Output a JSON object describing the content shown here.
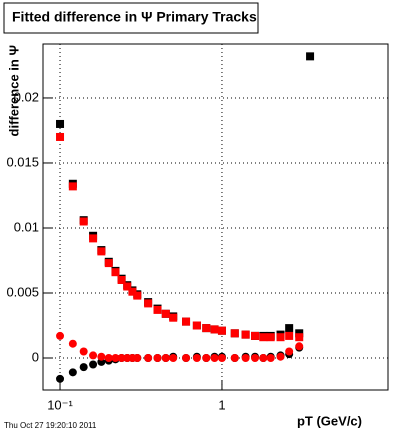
{
  "chart_data": {
    "type": "scatter",
    "title": "Fitted difference in Ψ   Primary Tracks",
    "y_label": "difference in Ψ",
    "x_label": "pT (GeV/c)",
    "footer": "Thu Oct 27 19:20:10 2011",
    "x_log": true,
    "grid": true,
    "xlim": [
      0.0785,
      10.6
    ],
    "ylim": [
      -0.00246,
      0.02415
    ],
    "xticks": [
      {
        "value": 0.1,
        "label": "10⁻¹"
      },
      1
    ],
    "yticks": [
      0,
      0.005,
      0.01,
      0.015,
      0.02
    ],
    "x": [
      0.1,
      0.12,
      0.14,
      0.16,
      0.18,
      0.2,
      0.22,
      0.24,
      0.26,
      0.28,
      0.3,
      0.35,
      0.4,
      0.45,
      0.5,
      0.6,
      0.7,
      0.8,
      0.9,
      1.0,
      1.2,
      1.4,
      1.6,
      1.8,
      2.0,
      2.3,
      2.6,
      3.0,
      3.5
    ],
    "series": [
      {
        "color": "#000000",
        "marker": "square",
        "values": [
          0.018,
          0.0134,
          0.0106,
          0.0094,
          0.0083,
          0.0074,
          0.0067,
          0.0061,
          0.0056,
          0.0052,
          0.0049,
          0.0043,
          0.0038,
          0.0034,
          0.0032,
          0.0028,
          0.0025,
          0.0023,
          0.0022,
          0.0021,
          0.0019,
          0.0018,
          0.0017,
          0.0017,
          0.0017,
          0.0018,
          0.0023,
          0.0019,
          0.0232
        ]
      },
      {
        "color": "#ff0000",
        "marker": "square",
        "values": [
          0.017,
          0.0132,
          0.0105,
          0.0092,
          0.0082,
          0.0073,
          0.0066,
          0.006,
          0.0055,
          0.0051,
          0.0048,
          0.0042,
          0.0037,
          0.0034,
          0.0031,
          0.0028,
          0.0025,
          0.0023,
          0.0022,
          0.0021,
          0.0019,
          0.0018,
          0.0017,
          0.0016,
          0.0016,
          0.0016,
          0.0017,
          0.0016,
          null
        ]
      },
      {
        "color": "#000000",
        "marker": "circle",
        "values": [
          -0.0016,
          -0.0011,
          -0.0007,
          -0.0005,
          -0.0003,
          -0.0002,
          -0.0001,
          0,
          0,
          0,
          0,
          0,
          0,
          0,
          0.0001,
          0,
          0.0001,
          0,
          0.0001,
          0.0001,
          0,
          0.0001,
          0.0001,
          0,
          0.0001,
          0.0002,
          0.0003,
          0.0008,
          null
        ]
      },
      {
        "color": "#ff0000",
        "marker": "circle",
        "values": [
          0.0017,
          0.0011,
          0.0005,
          0.0002,
          0.0001,
          0,
          0,
          0,
          0,
          0,
          0,
          0,
          0,
          0,
          0,
          0,
          0,
          0,
          0,
          0,
          0,
          0,
          0,
          0,
          0,
          0.0001,
          0.0005,
          0.0009,
          null
        ]
      }
    ]
  }
}
